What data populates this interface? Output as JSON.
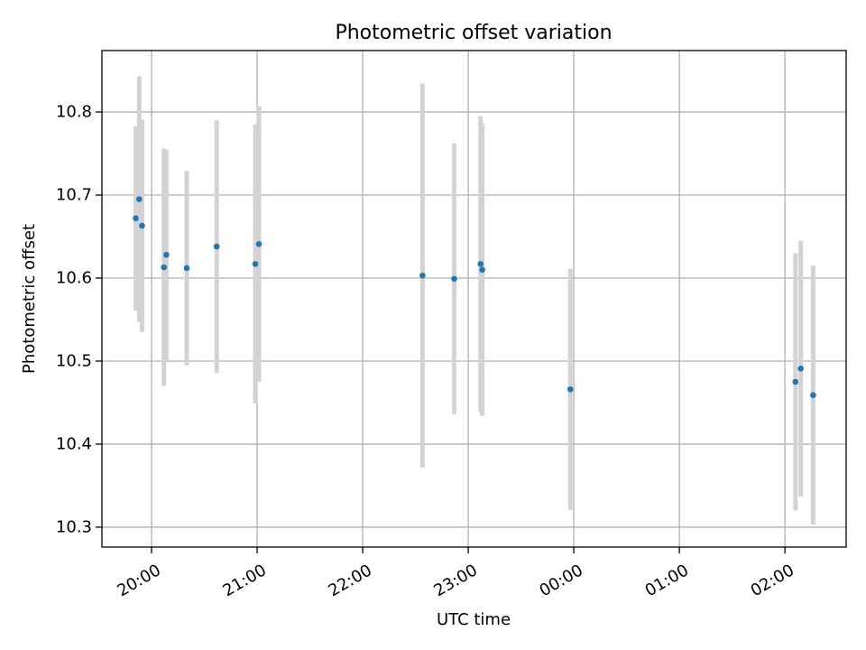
{
  "chart_data": {
    "type": "scatter",
    "title": "Photometric offset variation",
    "xlabel": "UTC time",
    "ylabel": "Photometric offset",
    "x_ticks": [
      "20:00",
      "21:00",
      "22:00",
      "23:00",
      "00:00",
      "01:00",
      "02:00"
    ],
    "y_ticks": [
      "10.3",
      "10.4",
      "10.5",
      "10.6",
      "10.7",
      "10.8"
    ],
    "y_tick_values": [
      10.3,
      10.4,
      10.5,
      10.6,
      10.7,
      10.8
    ],
    "x_tick_hours": [
      20,
      21,
      22,
      23,
      24,
      25,
      26
    ],
    "xlim_hours": [
      19.53,
      26.58
    ],
    "ylim": [
      10.276,
      10.874
    ],
    "grid": true,
    "point_color": "#1f77b4",
    "errorbar_color": "#d3d3d3",
    "points": [
      {
        "time": "19:51",
        "x_hours": 19.85,
        "y": 10.672,
        "yerr": 0.111
      },
      {
        "time": "19:53",
        "x_hours": 19.883,
        "y": 10.695,
        "yerr": 0.148
      },
      {
        "time": "19:55",
        "x_hours": 19.91,
        "y": 10.663,
        "yerr": 0.128
      },
      {
        "time": "20:07",
        "x_hours": 20.117,
        "y": 10.613,
        "yerr": 0.143
      },
      {
        "time": "20:08",
        "x_hours": 20.14,
        "y": 10.628,
        "yerr": 0.127
      },
      {
        "time": "20:20",
        "x_hours": 20.333,
        "y": 10.612,
        "yerr": 0.117
      },
      {
        "time": "20:37",
        "x_hours": 20.617,
        "y": 10.638,
        "yerr": 0.152
      },
      {
        "time": "20:58",
        "x_hours": 20.983,
        "y": 10.617,
        "yerr": 0.168
      },
      {
        "time": "21:01",
        "x_hours": 21.017,
        "y": 10.641,
        "yerr": 0.166
      },
      {
        "time": "22:34",
        "x_hours": 22.567,
        "y": 10.603,
        "yerr": 0.231
      },
      {
        "time": "22:52",
        "x_hours": 22.867,
        "y": 10.599,
        "yerr": 0.163
      },
      {
        "time": "23:07",
        "x_hours": 23.117,
        "y": 10.617,
        "yerr": 0.178
      },
      {
        "time": "23:08",
        "x_hours": 23.133,
        "y": 10.61,
        "yerr": 0.176
      },
      {
        "time": "23:58",
        "x_hours": 23.967,
        "y": 10.466,
        "yerr": 0.145
      },
      {
        "time": "02:06",
        "x_hours": 26.1,
        "y": 10.475,
        "yerr": 0.155
      },
      {
        "time": "02:09",
        "x_hours": 26.15,
        "y": 10.491,
        "yerr": 0.154
      },
      {
        "time": "02:16",
        "x_hours": 26.267,
        "y": 10.459,
        "yerr": 0.156
      }
    ]
  }
}
